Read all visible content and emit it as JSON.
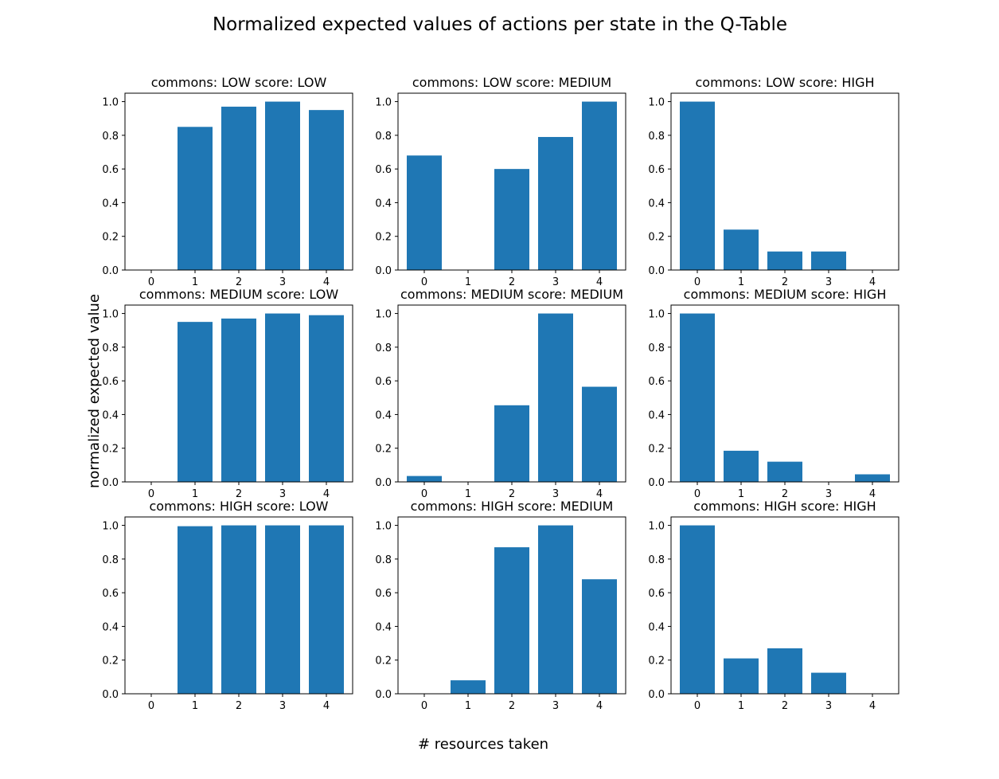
{
  "figure": {
    "suptitle": "Normalized expected values of actions per state in the Q-Table",
    "xlabel": "# resources taken",
    "ylabel": "normalized expected value"
  },
  "chart_data": [
    {
      "type": "bar",
      "title": "commons: LOW score: LOW",
      "categories": [
        "0",
        "1",
        "2",
        "3",
        "4"
      ],
      "values": [
        0.0,
        0.85,
        0.97,
        1.0,
        0.95
      ],
      "ylim": [
        0,
        1.05
      ],
      "yticks": [
        "0.0",
        "0.2",
        "0.4",
        "0.6",
        "0.8",
        "1.0"
      ],
      "color": "#1f77b4"
    },
    {
      "type": "bar",
      "title": "commons: LOW score: MEDIUM",
      "categories": [
        "0",
        "1",
        "2",
        "3",
        "4"
      ],
      "values": [
        0.68,
        0.0,
        0.6,
        0.79,
        1.0
      ],
      "ylim": [
        0,
        1.05
      ],
      "yticks": [
        "0.0",
        "0.2",
        "0.4",
        "0.6",
        "0.8",
        "1.0"
      ],
      "color": "#1f77b4"
    },
    {
      "type": "bar",
      "title": "commons: LOW score: HIGH",
      "categories": [
        "0",
        "1",
        "2",
        "3",
        "4"
      ],
      "values": [
        1.0,
        0.24,
        0.11,
        0.11,
        0.0
      ],
      "ylim": [
        0,
        1.05
      ],
      "yticks": [
        "0.0",
        "0.2",
        "0.4",
        "0.6",
        "0.8",
        "1.0"
      ],
      "color": "#1f77b4"
    },
    {
      "type": "bar",
      "title": "commons: MEDIUM score: LOW",
      "categories": [
        "0",
        "1",
        "2",
        "3",
        "4"
      ],
      "values": [
        0.0,
        0.95,
        0.97,
        1.0,
        0.99
      ],
      "ylim": [
        0,
        1.05
      ],
      "yticks": [
        "0.0",
        "0.2",
        "0.4",
        "0.6",
        "0.8",
        "1.0"
      ],
      "color": "#1f77b4"
    },
    {
      "type": "bar",
      "title": "commons: MEDIUM score: MEDIUM",
      "categories": [
        "0",
        "1",
        "2",
        "3",
        "4"
      ],
      "values": [
        0.035,
        0.0,
        0.455,
        1.0,
        0.565
      ],
      "ylim": [
        0,
        1.05
      ],
      "yticks": [
        "0.0",
        "0.2",
        "0.4",
        "0.6",
        "0.8",
        "1.0"
      ],
      "color": "#1f77b4"
    },
    {
      "type": "bar",
      "title": "commons: MEDIUM score: HIGH",
      "categories": [
        "0",
        "1",
        "2",
        "3",
        "4"
      ],
      "values": [
        1.0,
        0.185,
        0.12,
        0.0,
        0.045
      ],
      "ylim": [
        0,
        1.05
      ],
      "yticks": [
        "0.0",
        "0.2",
        "0.4",
        "0.6",
        "0.8",
        "1.0"
      ],
      "color": "#1f77b4"
    },
    {
      "type": "bar",
      "title": "commons: HIGH score: LOW",
      "categories": [
        "0",
        "1",
        "2",
        "3",
        "4"
      ],
      "values": [
        0.0,
        0.995,
        1.0,
        1.0,
        1.0
      ],
      "ylim": [
        0,
        1.05
      ],
      "yticks": [
        "0.0",
        "0.2",
        "0.4",
        "0.6",
        "0.8",
        "1.0"
      ],
      "color": "#1f77b4"
    },
    {
      "type": "bar",
      "title": "commons: HIGH score: MEDIUM",
      "categories": [
        "0",
        "1",
        "2",
        "3",
        "4"
      ],
      "values": [
        0.0,
        0.08,
        0.87,
        1.0,
        0.68
      ],
      "ylim": [
        0,
        1.05
      ],
      "yticks": [
        "0.0",
        "0.2",
        "0.4",
        "0.6",
        "0.8",
        "1.0"
      ],
      "color": "#1f77b4"
    },
    {
      "type": "bar",
      "title": "commons: HIGH score: HIGH",
      "categories": [
        "0",
        "1",
        "2",
        "3",
        "4"
      ],
      "values": [
        1.0,
        0.21,
        0.27,
        0.125,
        0.0
      ],
      "ylim": [
        0,
        1.05
      ],
      "yticks": [
        "0.0",
        "0.2",
        "0.4",
        "0.6",
        "0.8",
        "1.0"
      ],
      "color": "#1f77b4"
    }
  ]
}
